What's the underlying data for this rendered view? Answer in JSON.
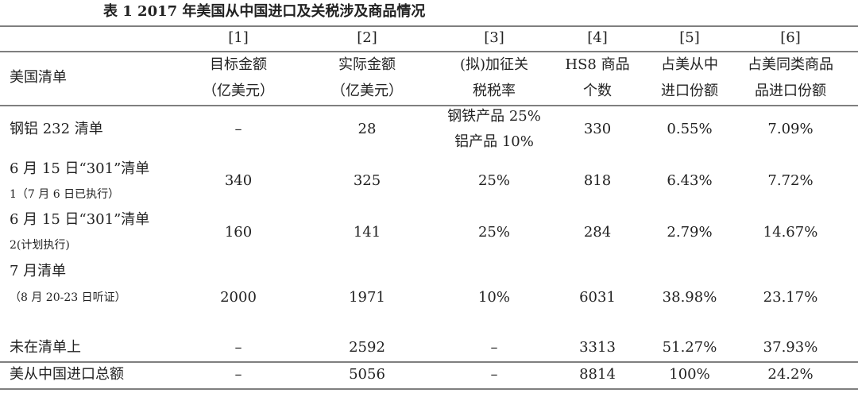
{
  "title": "表 1   2017 年美国从中国进口及关税涉及商品情况",
  "table": {
    "column_numbers": [
      "[1]",
      "[2]",
      "[3]",
      "[4]",
      "[5]",
      "[6]"
    ],
    "header": {
      "first": "美国清单",
      "columns": [
        [
          "目标金额",
          "（亿美元）"
        ],
        [
          "实际金额",
          "（亿美元）"
        ],
        [
          "(拟)加征关",
          "税税率"
        ],
        [
          "HS8 商品",
          "个数"
        ],
        [
          "占美从中",
          "进口份额"
        ],
        [
          "占美同类商品",
          "品进口份额"
        ]
      ]
    },
    "rows": [
      {
        "label": [
          "钢铝 232 清单"
        ],
        "cells": [
          [
            "–"
          ],
          [
            "28"
          ],
          [
            "钢铁产品 25%",
            "铝产品 10%"
          ],
          [
            "330"
          ],
          [
            "0.55%"
          ],
          [
            "7.09%"
          ]
        ]
      },
      {
        "label": [
          "6 月 15 日“301”清单",
          "1（7 月 6 日已执行）"
        ],
        "cells": [
          [
            "340"
          ],
          [
            "325"
          ],
          [
            "25%"
          ],
          [
            "818"
          ],
          [
            "6.43%"
          ],
          [
            "7.72%"
          ]
        ]
      },
      {
        "label": [
          "6 月 15 日“301”清单",
          "2(计划执行)"
        ],
        "cells": [
          [
            "160"
          ],
          [
            "141"
          ],
          [
            "25%"
          ],
          [
            "284"
          ],
          [
            "2.79%"
          ],
          [
            "14.67%"
          ]
        ]
      },
      {
        "label": [
          "7 月清单",
          "（8 月 20-23 日听证）"
        ],
        "cells": [
          [
            "2000"
          ],
          [
            "1971"
          ],
          [
            "10%"
          ],
          [
            "6031"
          ],
          [
            "38.98%"
          ],
          [
            "23.17%"
          ]
        ]
      },
      {
        "label": [
          "未在清单上"
        ],
        "cells": [
          [
            "–"
          ],
          [
            "2592"
          ],
          [
            "–"
          ],
          [
            "3313"
          ],
          [
            "51.27%"
          ],
          [
            "37.93%"
          ]
        ]
      },
      {
        "label": [
          "美从中国进口总额"
        ],
        "cells": [
          [
            "–"
          ],
          [
            "5056"
          ],
          [
            "–"
          ],
          [
            "8814"
          ],
          [
            "100%"
          ],
          [
            "24.2%"
          ]
        ]
      }
    ]
  }
}
